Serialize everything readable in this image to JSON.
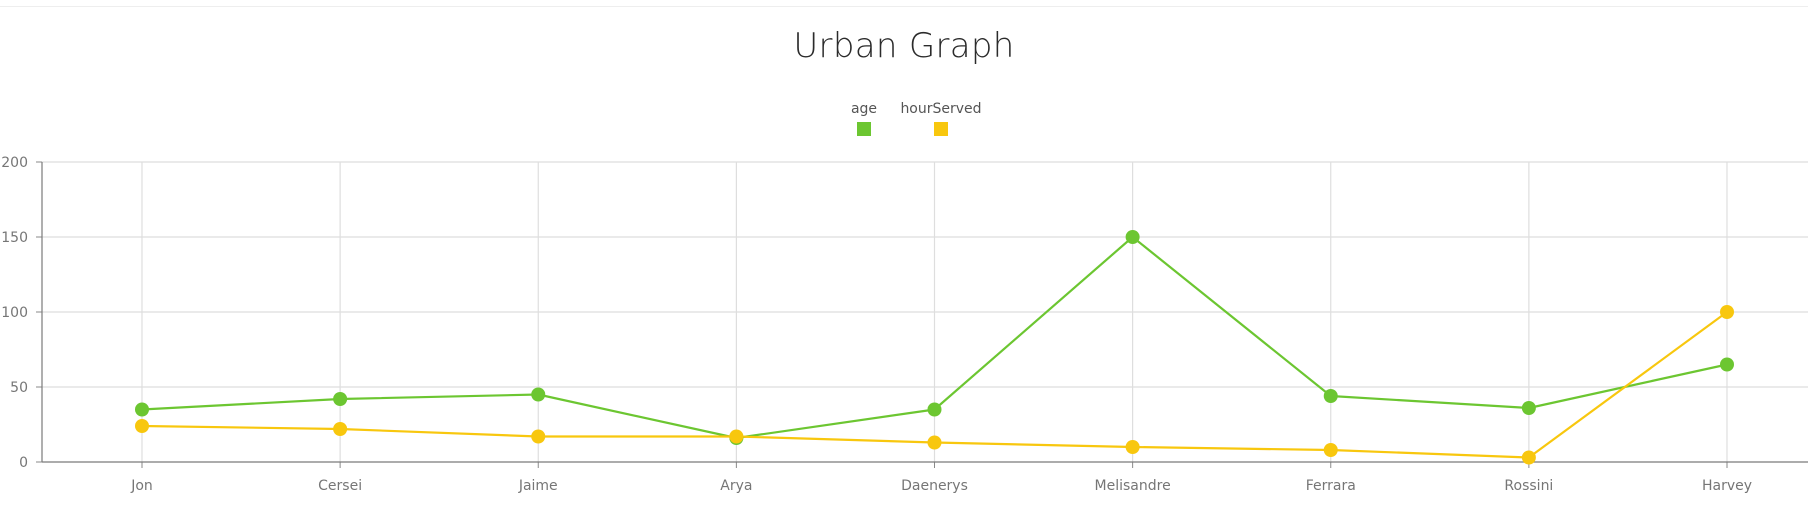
{
  "chart_data": {
    "type": "line",
    "title": "Urban Graph",
    "xlabel": "",
    "ylabel": "",
    "categories": [
      "Jon",
      "Cersei",
      "Jaime",
      "Arya",
      "Daenerys",
      "Melisandre",
      "Ferrara",
      "Rossini",
      "Harvey"
    ],
    "series": [
      {
        "name": "age",
        "color": "#6cc631",
        "values": [
          35,
          42,
          45,
          16,
          35,
          150,
          44,
          36,
          65
        ]
      },
      {
        "name": "hourServed",
        "color": "#f8c70e",
        "values": [
          24,
          22,
          17,
          17,
          13,
          10,
          8,
          3,
          100
        ]
      }
    ],
    "ylim": [
      0,
      200
    ],
    "yticks": [
      0,
      50,
      100,
      150,
      200
    ],
    "grid": true,
    "legend_position": "top-center"
  }
}
